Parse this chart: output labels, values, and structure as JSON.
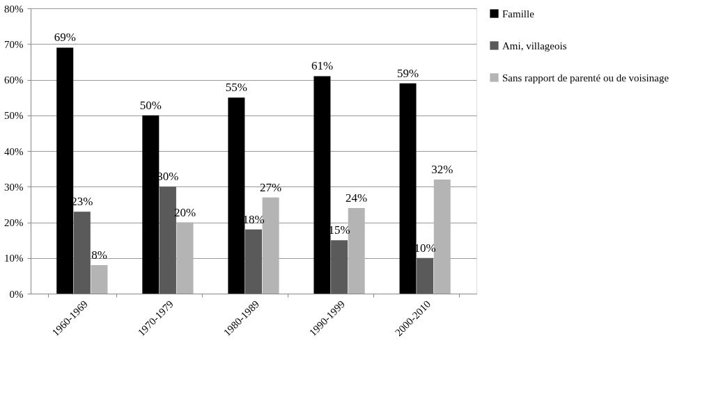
{
  "chart_data": {
    "type": "bar",
    "categories": [
      "1960-1969",
      "1970-1979",
      "1980-1989",
      "1990-1999",
      "2000-2010"
    ],
    "series": [
      {
        "name": "Famille",
        "color": "#000000",
        "values": [
          69,
          50,
          55,
          61,
          59
        ],
        "value_labels": [
          "69%",
          "50%",
          "55%",
          "61%",
          "59%"
        ]
      },
      {
        "name": "Ami, villageois",
        "color": "#5a5a5a",
        "values": [
          23,
          30,
          18,
          15,
          10
        ],
        "value_labels": [
          "23%",
          "30%",
          "18%",
          "15%",
          "10%"
        ]
      },
      {
        "name": "Sans rapport de parenté ou de voisinage",
        "color": "#b4b4b4",
        "values": [
          8,
          20,
          27,
          24,
          32
        ],
        "value_labels": [
          "8%",
          "20%",
          "27%",
          "24%",
          "32%"
        ]
      }
    ],
    "ylim": [
      0,
      80
    ],
    "yticks": [
      {
        "value": 0,
        "label": "0%"
      },
      {
        "value": 10,
        "label": "10%"
      },
      {
        "value": 20,
        "label": "20%"
      },
      {
        "value": 30,
        "label": "30%"
      },
      {
        "value": 40,
        "label": "40%"
      },
      {
        "value": 50,
        "label": "50%"
      },
      {
        "value": 60,
        "label": "60%"
      },
      {
        "value": 70,
        "label": "70%"
      },
      {
        "value": 80,
        "label": "80%"
      }
    ],
    "grid": "y",
    "legend": "right"
  }
}
